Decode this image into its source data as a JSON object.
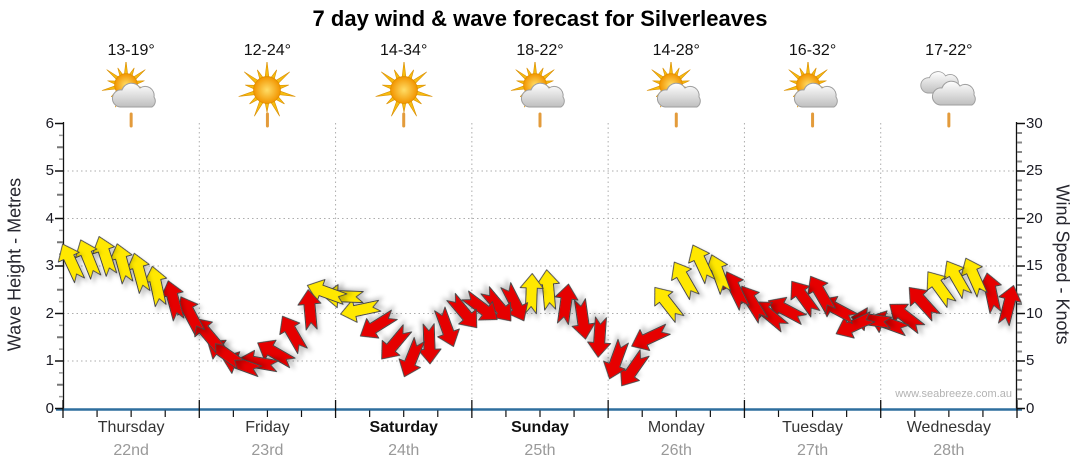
{
  "title": "7 day wind & wave forecast for Silverleaves",
  "watermark": "www.seabreeze.com.au",
  "days": [
    {
      "name": "Thursday",
      "date": "22nd",
      "temp": "13-19°",
      "icon": "sun-cloud",
      "bold": false
    },
    {
      "name": "Friday",
      "date": "23rd",
      "temp": "12-24°",
      "icon": "sun",
      "bold": false
    },
    {
      "name": "Saturday",
      "date": "24th",
      "temp": "14-34°",
      "icon": "sun",
      "bold": true
    },
    {
      "name": "Sunday",
      "date": "25th",
      "temp": "18-22°",
      "icon": "sun-cloud",
      "bold": true
    },
    {
      "name": "Monday",
      "date": "26th",
      "temp": "14-28°",
      "icon": "sun-cloud",
      "bold": false
    },
    {
      "name": "Tuesday",
      "date": "27th",
      "temp": "16-32°",
      "icon": "sun-cloud",
      "bold": false
    },
    {
      "name": "Wednesday",
      "date": "28th",
      "temp": "17-22°",
      "icon": "cloud",
      "bold": false
    }
  ],
  "axes": {
    "left": {
      "label": "Wave Height - Metres",
      "ticks": [
        0,
        1,
        2,
        3,
        4,
        5,
        6
      ],
      "range": [
        0,
        6
      ]
    },
    "right": {
      "label": "Wind Speed - Knots",
      "ticks": [
        0,
        5,
        10,
        15,
        20,
        25,
        30
      ],
      "range": [
        0,
        30
      ]
    }
  },
  "colors": {
    "yellow_arrow": "#FFE800",
    "red_arrow": "#E60000",
    "arrow_outline": "#444444",
    "baseline_blue": "#2F6E9E",
    "grid": "#ADADAD",
    "noon_marker": "#E39B3B",
    "date_text": "#999999"
  },
  "chart_data": {
    "type": "wind-arrow-series",
    "x_axis": "time, 3-hourly steps across 7 days (Thursday 22nd - Wednesday 28th)",
    "y_left_label": "Wave Height - Metres",
    "y_left_range": [
      0,
      6
    ],
    "y_right_label": "Wind Speed - Knots",
    "y_right_range": [
      0,
      30
    ],
    "grid": "dotted horizontal every 5 knots, dotted vertical at midnight day boundaries, orange tick at each midday",
    "points_per_day": 8,
    "points": [
      {
        "knots": 15.3,
        "color": "yellow",
        "dir": -25
      },
      {
        "knots": 15.7,
        "color": "yellow",
        "dir": -22
      },
      {
        "knots": 16.0,
        "color": "yellow",
        "dir": -18
      },
      {
        "knots": 15.2,
        "color": "yellow",
        "dir": -15
      },
      {
        "knots": 14.2,
        "color": "yellow",
        "dir": -15
      },
      {
        "knots": 12.8,
        "color": "yellow",
        "dir": -12
      },
      {
        "knots": 11.3,
        "color": "red",
        "dir": -15
      },
      {
        "knots": 9.8,
        "color": "red",
        "dir": -28
      },
      {
        "knots": 7.8,
        "color": "red",
        "dir": -40
      },
      {
        "knots": 5.8,
        "color": "red",
        "dir": -55
      },
      {
        "knots": 4.6,
        "color": "red",
        "dir": -70
      },
      {
        "knots": 4.8,
        "color": "red",
        "dir": -80
      },
      {
        "knots": 5.8,
        "color": "red",
        "dir": -60
      },
      {
        "knots": 7.8,
        "color": "red",
        "dir": -30
      },
      {
        "knots": 10.3,
        "color": "red",
        "dir": -5
      },
      {
        "knots": 12.2,
        "color": "yellow",
        "dir": -70
      },
      {
        "knots": 11.8,
        "color": "yellow",
        "dir": -88
      },
      {
        "knots": 10.4,
        "color": "yellow",
        "dir": -102
      },
      {
        "knots": 8.8,
        "color": "red",
        "dir": -122
      },
      {
        "knots": 6.9,
        "color": "red",
        "dir": -140
      },
      {
        "knots": 5.4,
        "color": "red",
        "dir": -158
      },
      {
        "knots": 6.9,
        "color": "red",
        "dir": 178
      },
      {
        "knots": 8.6,
        "color": "red",
        "dir": 160
      },
      {
        "knots": 10.2,
        "color": "red",
        "dir": 140
      },
      {
        "knots": 10.7,
        "color": "red",
        "dir": 127
      },
      {
        "knots": 10.9,
        "color": "red",
        "dir": 140
      },
      {
        "knots": 11.2,
        "color": "red",
        "dir": 153
      },
      {
        "knots": 12.0,
        "color": "yellow",
        "dir": 2
      },
      {
        "knots": 12.4,
        "color": "yellow",
        "dir": -5
      },
      {
        "knots": 10.9,
        "color": "red",
        "dir": 8
      },
      {
        "knots": 9.5,
        "color": "red",
        "dir": 172
      },
      {
        "knots": 7.6,
        "color": "red",
        "dir": -176
      },
      {
        "knots": 5.2,
        "color": "red",
        "dir": -160
      },
      {
        "knots": 4.2,
        "color": "red",
        "dir": -145
      },
      {
        "knots": 7.5,
        "color": "red",
        "dir": -115
      },
      {
        "knots": 11.0,
        "color": "yellow",
        "dir": -38
      },
      {
        "knots": 13.5,
        "color": "yellow",
        "dir": -30
      },
      {
        "knots": 15.2,
        "color": "yellow",
        "dir": -25
      },
      {
        "knots": 14.1,
        "color": "yellow",
        "dir": -20
      },
      {
        "knots": 12.4,
        "color": "red",
        "dir": -26
      },
      {
        "knots": 11.0,
        "color": "red",
        "dir": -32
      },
      {
        "knots": 9.8,
        "color": "red",
        "dir": -50
      },
      {
        "knots": 10.3,
        "color": "red",
        "dir": -62
      },
      {
        "knots": 11.6,
        "color": "red",
        "dir": -36
      },
      {
        "knots": 12.0,
        "color": "red",
        "dir": -30
      },
      {
        "knots": 10.4,
        "color": "red",
        "dir": -62
      },
      {
        "knots": 8.8,
        "color": "red",
        "dir": -115
      },
      {
        "knots": 9.3,
        "color": "red",
        "dir": -82
      },
      {
        "knots": 8.9,
        "color": "red",
        "dir": -70
      },
      {
        "knots": 9.6,
        "color": "red",
        "dir": -52
      },
      {
        "knots": 11.1,
        "color": "red",
        "dir": -42
      },
      {
        "knots": 12.6,
        "color": "yellow",
        "dir": -36
      },
      {
        "knots": 13.6,
        "color": "yellow",
        "dir": -30
      },
      {
        "knots": 13.8,
        "color": "yellow",
        "dir": -24
      },
      {
        "knots": 12.1,
        "color": "red",
        "dir": -12
      },
      {
        "knots": 10.8,
        "color": "red",
        "dir": 14
      }
    ]
  }
}
